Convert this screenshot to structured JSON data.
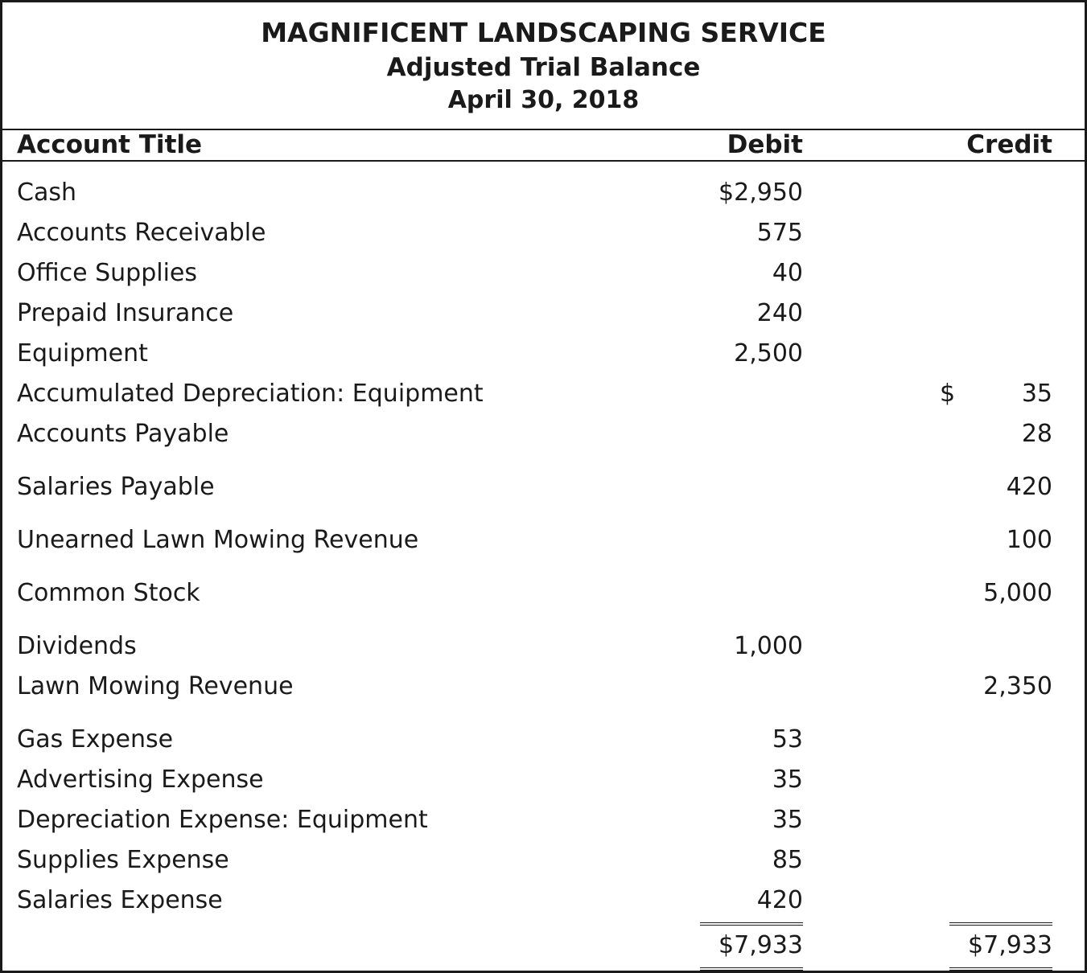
{
  "header": {
    "company": "MAGNIFICENT LANDSCAPING SERVICE",
    "report": "Adjusted Trial Balance",
    "date": "April 30, 2018"
  },
  "columns": {
    "account": "Account Title",
    "debit": "Debit",
    "credit": "Credit"
  },
  "rows": [
    {
      "account": "Cash",
      "debit": "$2,950",
      "credit_symbol": "",
      "credit": ""
    },
    {
      "account": "Accounts Receivable",
      "debit": "575",
      "credit_symbol": "",
      "credit": ""
    },
    {
      "account": "Office Supplies",
      "debit": "40",
      "credit_symbol": "",
      "credit": ""
    },
    {
      "account": "Prepaid Insurance",
      "debit": "240",
      "credit_symbol": "",
      "credit": ""
    },
    {
      "account": "Equipment",
      "debit": "2,500",
      "credit_symbol": "",
      "credit": ""
    },
    {
      "account": "Accumulated Depreciation: Equipment",
      "debit": "",
      "credit_symbol": "$",
      "credit": "35"
    },
    {
      "account": "Accounts Payable",
      "debit": "",
      "credit_symbol": "",
      "credit": "28"
    },
    {
      "account": "Salaries Payable",
      "debit": "",
      "credit_symbol": "",
      "credit": "420"
    },
    {
      "account": "Unearned Lawn Mowing Revenue",
      "debit": "",
      "credit_symbol": "",
      "credit": "100"
    },
    {
      "account": "Common Stock",
      "debit": "",
      "credit_symbol": "",
      "credit": "5,000"
    },
    {
      "account": "Dividends",
      "debit": "1,000",
      "credit_symbol": "",
      "credit": ""
    },
    {
      "account": "Lawn Mowing Revenue",
      "debit": "",
      "credit_symbol": "",
      "credit": "2,350"
    },
    {
      "account": "Gas Expense",
      "debit": "53",
      "credit_symbol": "",
      "credit": ""
    },
    {
      "account": "Advertising Expense",
      "debit": "35",
      "credit_symbol": "",
      "credit": ""
    },
    {
      "account": "Depreciation Expense: Equipment",
      "debit": "35",
      "credit_symbol": "",
      "credit": ""
    },
    {
      "account": "Supplies Expense",
      "debit": "85",
      "credit_symbol": "",
      "credit": ""
    },
    {
      "account": "Salaries Expense",
      "debit": "420",
      "credit_symbol": "",
      "credit": ""
    }
  ],
  "totals": {
    "debit": "$7,933",
    "credit": "$7,933"
  }
}
